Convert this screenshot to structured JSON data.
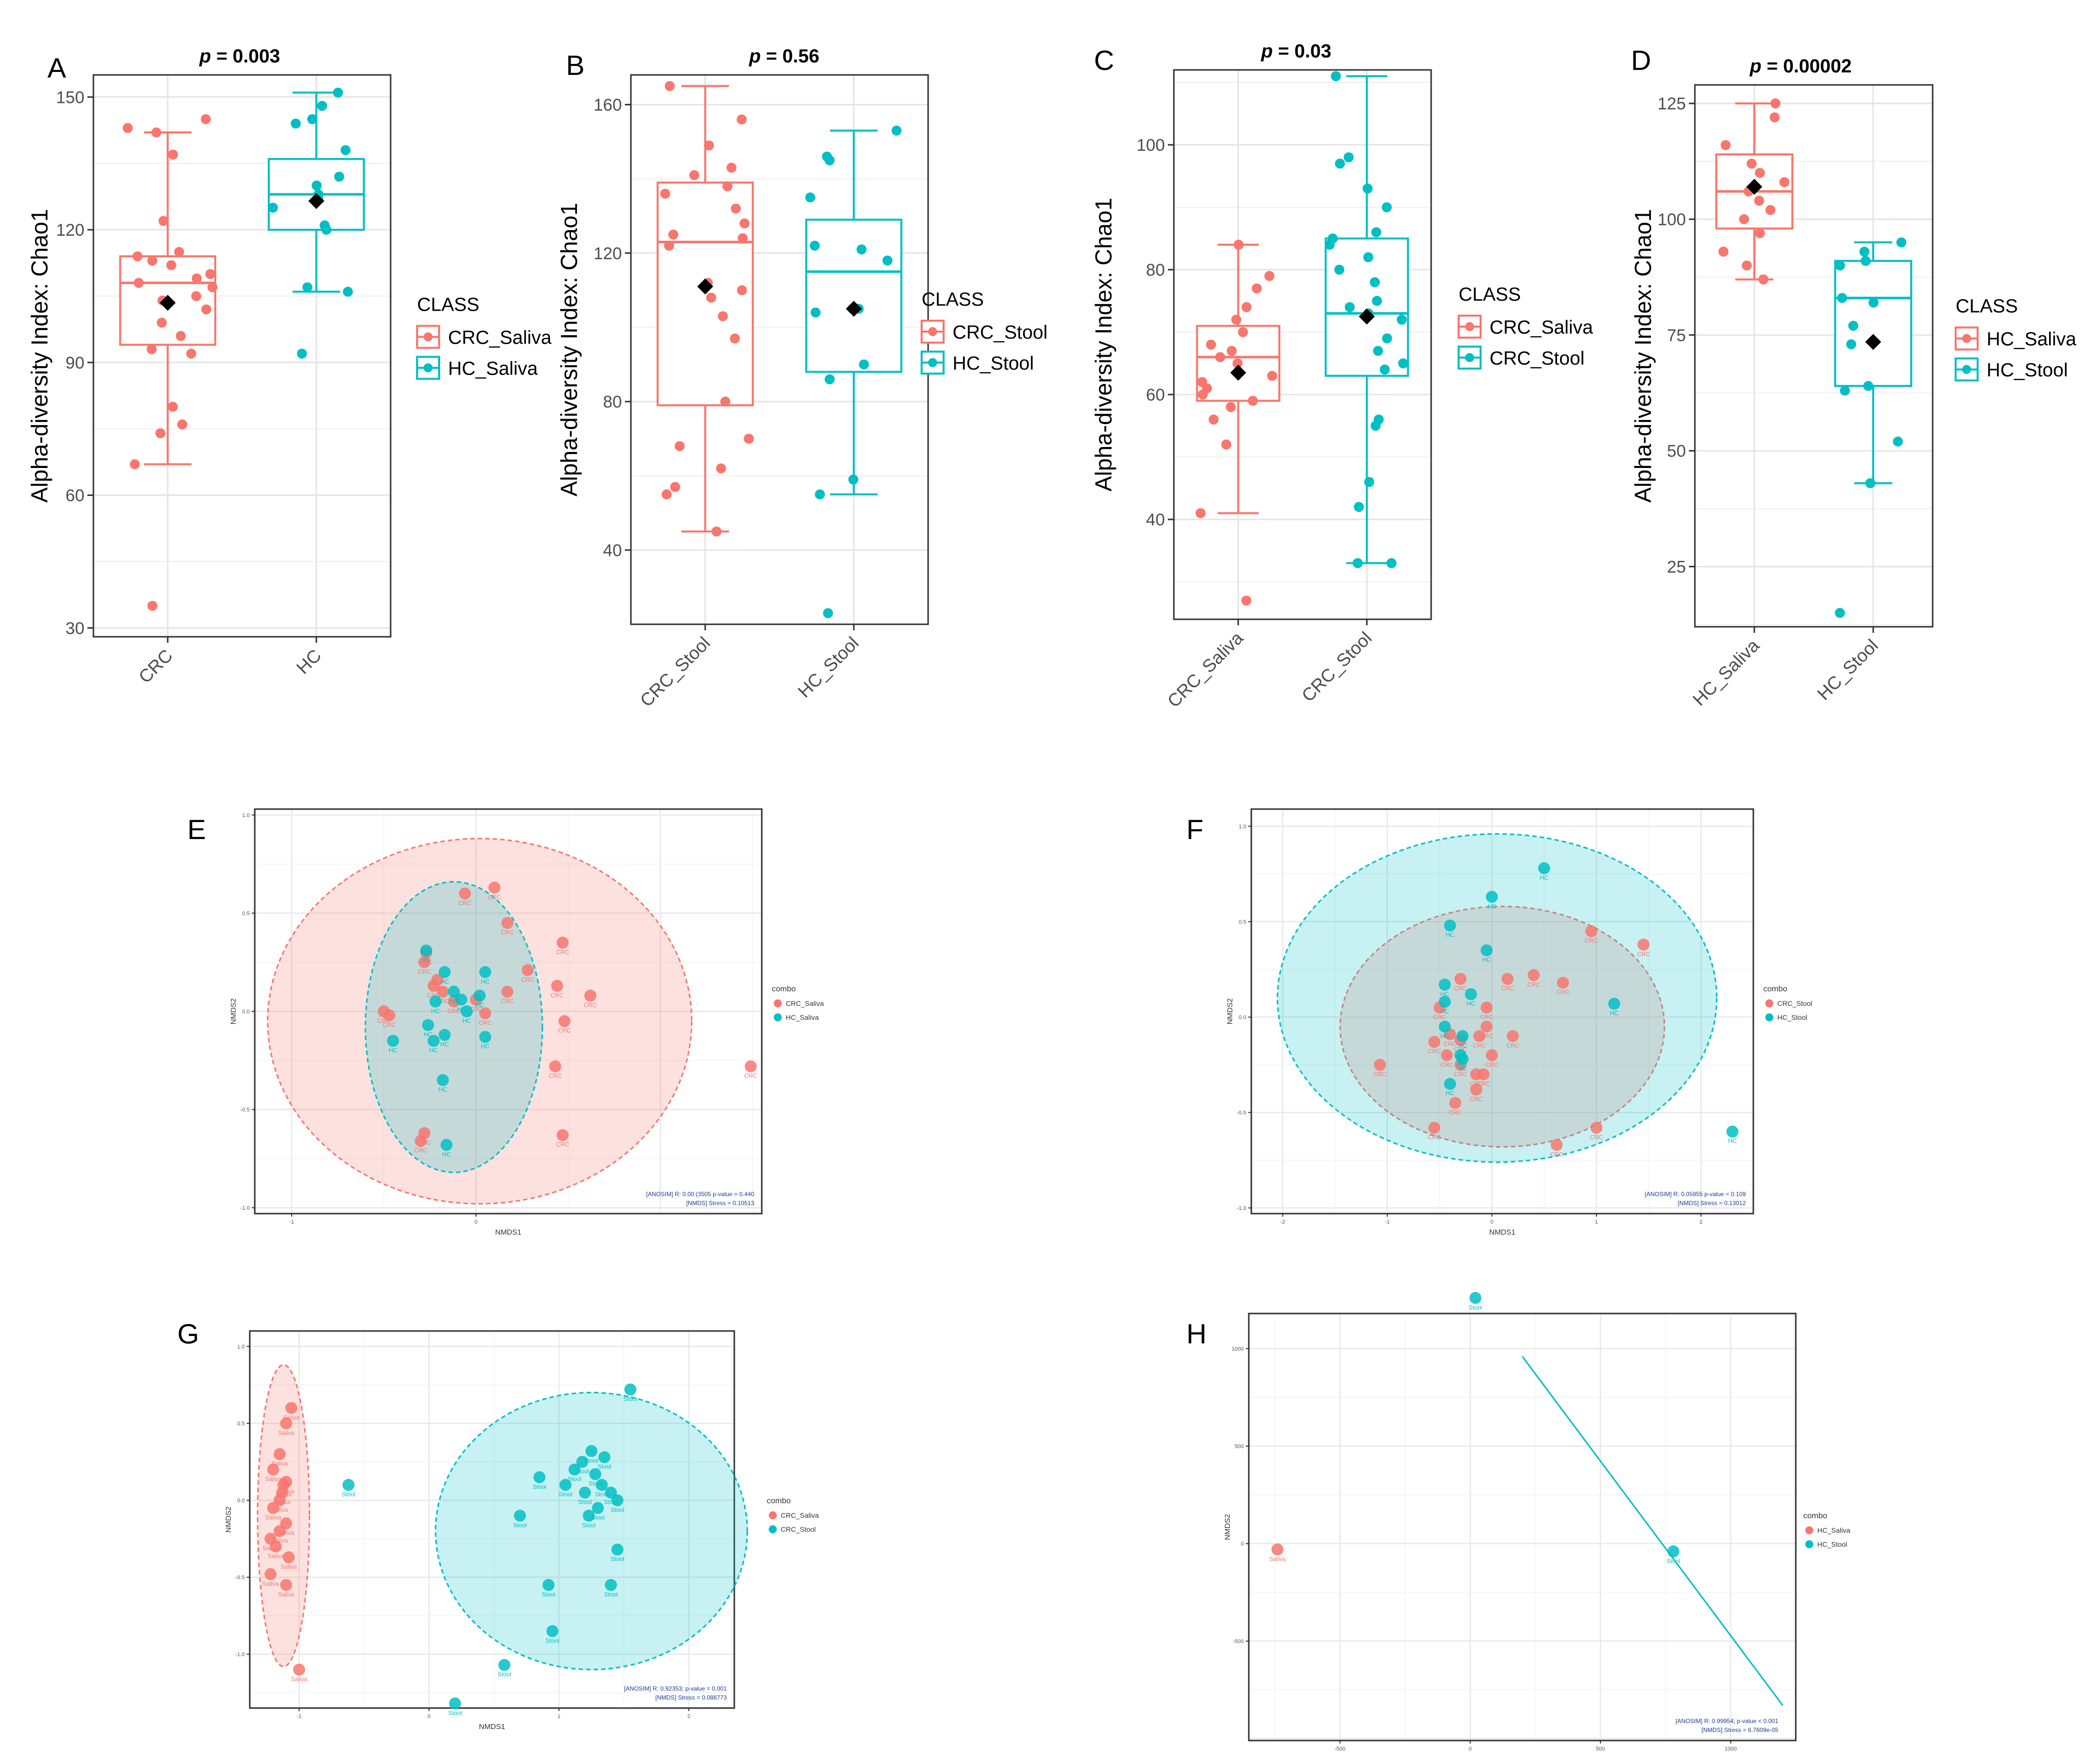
{
  "figure": {
    "colors": {
      "pink": "#F8766D",
      "teal": "#00BFC4",
      "grid": "#e6e6e6",
      "ink": "#000000",
      "annot": "#1f3a93"
    }
  },
  "chart_data": [
    {
      "id": "A",
      "type": "box",
      "title": "p = 0.003",
      "ylabel": "Alpha-diversity Index: Chao1",
      "xlabel": "",
      "ylim": [
        28,
        155
      ],
      "yticks": [
        30,
        60,
        90,
        120,
        150
      ],
      "legend_title": "CLASS",
      "categories": [
        "CRC",
        "HC"
      ],
      "series": [
        {
          "name": "CRC_Saliva",
          "color": "#F8766D",
          "whisker_low": 67,
          "q1": 94,
          "median": 108,
          "q3": 114,
          "whisker_high": 142,
          "mean": 103.5,
          "points": [
            145,
            143,
            137,
            142,
            122,
            115,
            114,
            113,
            112,
            110,
            109,
            108,
            107,
            105,
            104,
            102,
            99,
            96,
            93,
            92,
            80,
            76,
            74,
            67,
            35
          ]
        },
        {
          "name": "HC_Saliva",
          "color": "#00BFC4",
          "whisker_low": 106,
          "q1": 120,
          "median": 128,
          "q3": 136,
          "whisker_high": 151,
          "mean": 126.5,
          "points": [
            151,
            148,
            145,
            144,
            138,
            132,
            130,
            128,
            127,
            125,
            121,
            120,
            107,
            106,
            92
          ]
        }
      ]
    },
    {
      "id": "B",
      "type": "box",
      "title": "p = 0.56",
      "ylabel": "Alpha-diversity Index: Chao1",
      "xlabel": "",
      "ylim": [
        20,
        168
      ],
      "yticks": [
        40,
        80,
        120,
        160
      ],
      "legend_title": "CLASS",
      "categories": [
        "CRC_Stool",
        "HC_Stool"
      ],
      "series": [
        {
          "name": "CRC_Stool",
          "color": "#F8766D",
          "whisker_low": 45,
          "q1": 79,
          "median": 123,
          "q3": 139,
          "whisker_high": 165,
          "mean": 111,
          "points": [
            165,
            156,
            149,
            143,
            141,
            138,
            136,
            132,
            128,
            125,
            124,
            122,
            112,
            110,
            108,
            103,
            97,
            80,
            70,
            68,
            62,
            57,
            55,
            45
          ]
        },
        {
          "name": "HC_Stool",
          "color": "#00BFC4",
          "whisker_low": 55,
          "q1": 88,
          "median": 115,
          "q3": 129,
          "whisker_high": 153,
          "mean": 105,
          "points": [
            153,
            146,
            145,
            135,
            122,
            121,
            118,
            105,
            104,
            90,
            86,
            59,
            55,
            23
          ]
        }
      ]
    },
    {
      "id": "C",
      "type": "box",
      "title": "p = 0.03",
      "ylabel": "Alpha-diversity Index: Chao1",
      "xlabel": "",
      "ylim": [
        24,
        112
      ],
      "yticks": [
        40,
        60,
        80,
        100
      ],
      "legend_title": "CLASS",
      "categories": [
        "CRC_Saliva",
        "CRC_Stool"
      ],
      "series": [
        {
          "name": "CRC_Saliva",
          "color": "#F8766D",
          "whisker_low": 41,
          "q1": 59,
          "median": 66,
          "q3": 71,
          "whisker_high": 84,
          "mean": 63.5,
          "points": [
            84,
            79,
            77,
            74,
            72,
            70,
            68,
            67,
            66,
            65,
            63,
            62,
            61,
            60,
            59,
            58,
            56,
            52,
            41,
            27
          ]
        },
        {
          "name": "CRC_Stool",
          "color": "#00BFC4",
          "whisker_low": 33,
          "q1": 63,
          "median": 73,
          "q3": 85,
          "whisker_high": 111,
          "mean": 72.5,
          "points": [
            111,
            98,
            97,
            93,
            90,
            86,
            85,
            84,
            82,
            80,
            78,
            75,
            74,
            73,
            72,
            69,
            67,
            65,
            64,
            56,
            55,
            46,
            42,
            33,
            33
          ]
        }
      ]
    },
    {
      "id": "D",
      "type": "box",
      "title": "p = 0.00002",
      "ylabel": "Alpha-diversity Index: Chao1",
      "xlabel": "",
      "ylim": [
        12,
        129
      ],
      "yticks": [
        25,
        50,
        75,
        100,
        125
      ],
      "legend_title": "CLASS",
      "categories": [
        "HC_Saliva",
        "HC_Stool"
      ],
      "series": [
        {
          "name": "HC_Saliva",
          "color": "#F8766D",
          "whisker_low": 87,
          "q1": 98,
          "median": 106,
          "q3": 114,
          "whisker_high": 125,
          "mean": 107,
          "points": [
            125,
            122,
            116,
            112,
            110,
            108,
            106,
            104,
            102,
            100,
            97,
            93,
            90,
            87
          ]
        },
        {
          "name": "HC_Stool",
          "color": "#00BFC4",
          "whisker_low": 43,
          "q1": 64,
          "median": 83,
          "q3": 91,
          "whisker_high": 95,
          "mean": 73.5,
          "points": [
            95,
            93,
            91,
            90,
            83,
            82,
            77,
            73,
            64,
            63,
            52,
            43,
            15
          ]
        }
      ]
    },
    {
      "id": "E",
      "type": "scatter",
      "xlabel": "NMDS1",
      "ylabel": "NMDS2",
      "xlim": [
        -1.2,
        1.55
      ],
      "ylim": [
        -1.03,
        1.03
      ],
      "xticks": [
        -1,
        0
      ],
      "yticks": [
        -1.0,
        -0.5,
        0.0,
        0.5,
        1.0
      ],
      "legend_title": "combo",
      "annotation": [
        "[ANOSIM] R: 0.00 (3505 p-value = 0.440",
        "[NMDS] Stress = 0.10513"
      ],
      "series": [
        {
          "name": "CRC_Saliva",
          "color": "#F8766D",
          "label": "CRC",
          "ellipse": {
            "cx": 0.02,
            "cy": -0.05,
            "rx": 1.15,
            "ry": 0.93,
            "angle": 0
          },
          "points": [
            [
              -0.06,
              0.6
            ],
            [
              0.1,
              0.63
            ],
            [
              0.17,
              0.45
            ],
            [
              -0.27,
              0.3
            ],
            [
              -0.28,
              0.25
            ],
            [
              -0.23,
              0.13
            ],
            [
              -0.21,
              0.16
            ],
            [
              -0.18,
              0.1
            ],
            [
              -0.12,
              0.05
            ],
            [
              0.28,
              0.21
            ],
            [
              0.47,
              0.35
            ],
            [
              0.44,
              0.13
            ],
            [
              0.62,
              0.08
            ],
            [
              0.48,
              -0.05
            ],
            [
              0.43,
              -0.28
            ],
            [
              0.47,
              -0.63
            ],
            [
              -0.28,
              -0.62
            ],
            [
              -0.3,
              -0.66
            ],
            [
              -0.5,
              0.0
            ],
            [
              -0.47,
              -0.02
            ],
            [
              0.05,
              -0.01
            ],
            [
              0.17,
              0.1
            ],
            [
              1.49,
              -0.28
            ],
            [
              0.0,
              0.06
            ]
          ]
        },
        {
          "name": "HC_Saliva",
          "color": "#00BFC4",
          "label": "HC",
          "ellipse": {
            "cx": -0.12,
            "cy": -0.08,
            "rx": 0.48,
            "ry": 0.74,
            "angle": 0
          },
          "points": [
            [
              -0.27,
              0.31
            ],
            [
              -0.17,
              0.2
            ],
            [
              -0.12,
              0.1
            ],
            [
              -0.22,
              0.05
            ],
            [
              -0.08,
              0.06
            ],
            [
              0.05,
              0.2
            ],
            [
              -0.05,
              0.0
            ],
            [
              -0.26,
              -0.07
            ],
            [
              -0.17,
              -0.12
            ],
            [
              -0.23,
              -0.15
            ],
            [
              0.05,
              -0.13
            ],
            [
              -0.45,
              -0.15
            ],
            [
              -0.18,
              -0.35
            ],
            [
              -0.16,
              -0.68
            ],
            [
              0.02,
              0.08
            ]
          ]
        }
      ]
    },
    {
      "id": "F",
      "type": "scatter",
      "xlabel": "NMDS1",
      "ylabel": "NMDS2",
      "xlim": [
        -2.3,
        2.5
      ],
      "ylim": [
        -1.03,
        1.09
      ],
      "xticks": [
        -2,
        -1,
        0,
        1,
        2
      ],
      "yticks": [
        -1.0,
        -0.5,
        0.0,
        0.5,
        1.0
      ],
      "legend_title": "combo",
      "annotation": [
        "[ANOSIM] R: 0.05955 p-value = 0.109",
        "[NMDS] Stress = 0.13012"
      ],
      "series": [
        {
          "name": "CRC_Stool",
          "color": "#F8766D",
          "label": "CRC",
          "ellipse": {
            "cx": 0.1,
            "cy": -0.05,
            "rx": 1.55,
            "ry": 0.63,
            "angle": 0
          },
          "points": [
            [
              0.95,
              0.45
            ],
            [
              1.45,
              0.38
            ],
            [
              -1.07,
              -0.25
            ],
            [
              -0.4,
              -0.09
            ],
            [
              -0.3,
              -0.12
            ],
            [
              -0.55,
              -0.13
            ],
            [
              -0.43,
              -0.2
            ],
            [
              -0.3,
              -0.25
            ],
            [
              -0.15,
              -0.3
            ],
            [
              -0.08,
              -0.3
            ],
            [
              0.15,
              0.2
            ],
            [
              0.4,
              0.22
            ],
            [
              0.68,
              0.18
            ],
            [
              0.2,
              -0.1
            ],
            [
              -0.12,
              -0.1
            ],
            [
              -0.05,
              -0.05
            ],
            [
              -0.3,
              0.2
            ],
            [
              -0.5,
              0.05
            ],
            [
              -0.35,
              -0.45
            ],
            [
              -0.55,
              -0.58
            ],
            [
              -0.15,
              -0.38
            ],
            [
              0.62,
              -0.67
            ],
            [
              1.0,
              -0.58
            ],
            [
              -0.05,
              0.05
            ],
            [
              0.0,
              -0.2
            ]
          ]
        },
        {
          "name": "HC_Stool",
          "color": "#00BFC4",
          "label": "HC",
          "ellipse": {
            "cx": 0.05,
            "cy": 0.1,
            "rx": 2.1,
            "ry": 0.86,
            "angle": 0
          },
          "points": [
            [
              0.5,
              0.78
            ],
            [
              0.0,
              0.63
            ],
            [
              -0.4,
              0.48
            ],
            [
              -0.05,
              0.35
            ],
            [
              -0.45,
              0.17
            ],
            [
              -0.45,
              0.08
            ],
            [
              -0.45,
              -0.05
            ],
            [
              -0.28,
              -0.1
            ],
            [
              -0.3,
              -0.2
            ],
            [
              -0.28,
              -0.22
            ],
            [
              -0.4,
              -0.35
            ],
            [
              1.17,
              0.07
            ],
            [
              2.3,
              -0.6
            ],
            [
              -0.2,
              0.12
            ]
          ]
        }
      ]
    },
    {
      "id": "G",
      "type": "scatter",
      "xlabel": "NMDS1",
      "ylabel": "NMDS2",
      "xlim": [
        -1.38,
        2.35
      ],
      "ylim": [
        -1.35,
        1.1
      ],
      "xticks": [
        -1,
        0,
        1,
        2
      ],
      "yticks": [
        -1.0,
        -0.5,
        0.0,
        0.5,
        1.0
      ],
      "legend_title": "combo",
      "annotation": [
        "[ANOSIM] R: 0.92353; p-value = 0.001",
        "[NMDS] Stress = 0.088773"
      ],
      "series": [
        {
          "name": "CRC_Saliva",
          "color": "#F8766D",
          "label": "Saliva",
          "ellipse": {
            "cx": -1.12,
            "cy": -0.1,
            "rx": 0.2,
            "ry": 0.98,
            "angle": 0
          },
          "points": [
            [
              -1.06,
              0.6
            ],
            [
              -1.1,
              0.5
            ],
            [
              -1.15,
              0.3
            ],
            [
              -1.2,
              0.2
            ],
            [
              -1.12,
              0.1
            ],
            [
              -1.1,
              0.12
            ],
            [
              -1.13,
              0.05
            ],
            [
              -1.15,
              0.0
            ],
            [
              -1.2,
              -0.05
            ],
            [
              -1.1,
              -0.15
            ],
            [
              -1.15,
              -0.2
            ],
            [
              -1.22,
              -0.25
            ],
            [
              -1.18,
              -0.3
            ],
            [
              -1.08,
              -0.37
            ],
            [
              -1.22,
              -0.48
            ],
            [
              -1.1,
              -0.55
            ],
            [
              -1.0,
              -1.1
            ]
          ]
        },
        {
          "name": "CRC_Stool",
          "color": "#00BFC4",
          "label": "Stool",
          "ellipse": {
            "cx": 1.25,
            "cy": -0.2,
            "rx": 1.2,
            "ry": 0.9,
            "angle": 0
          },
          "points": [
            [
              1.55,
              0.72
            ],
            [
              0.85,
              0.15
            ],
            [
              -0.62,
              0.1
            ],
            [
              1.25,
              0.32
            ],
            [
              1.35,
              0.28
            ],
            [
              1.18,
              0.25
            ],
            [
              1.12,
              0.2
            ],
            [
              1.28,
              0.17
            ],
            [
              1.05,
              0.1
            ],
            [
              1.2,
              0.05
            ],
            [
              1.4,
              0.05
            ],
            [
              1.33,
              0.1
            ],
            [
              1.3,
              -0.05
            ],
            [
              1.45,
              0.0
            ],
            [
              1.23,
              -0.1
            ],
            [
              0.7,
              -0.1
            ],
            [
              1.45,
              -0.32
            ],
            [
              1.4,
              -0.55
            ],
            [
              0.92,
              -0.55
            ],
            [
              0.95,
              -0.85
            ],
            [
              0.58,
              -1.07
            ],
            [
              0.2,
              -1.32
            ]
          ]
        }
      ]
    },
    {
      "id": "H",
      "type": "scatter",
      "xlabel": "",
      "ylabel": "NMDS2",
      "xlim": [
        -850,
        1250
      ],
      "ylim": [
        -1010,
        1180
      ],
      "xticks": [
        -500,
        0,
        500,
        1000
      ],
      "yticks": [
        -500,
        0,
        500,
        1000
      ],
      "legend_title": "combo",
      "annotation": [
        "[ANOSIM] R: 0.99954; p-value < 0.001",
        "[NMDS] Stress = 6.7609e-05"
      ],
      "segment": {
        "color": "#00BFC4",
        "from": [
          200,
          960
        ],
        "to": [
          1200,
          -830
        ]
      },
      "series": [
        {
          "name": "HC_Saliva",
          "color": "#F8766D",
          "label": "Saliva",
          "points": [
            [
              -740,
              -30
            ]
          ]
        },
        {
          "name": "HC_Stool",
          "color": "#00BFC4",
          "label": "Stool",
          "points": [
            [
              20,
              1260
            ],
            [
              780,
              -40
            ]
          ]
        }
      ]
    }
  ]
}
